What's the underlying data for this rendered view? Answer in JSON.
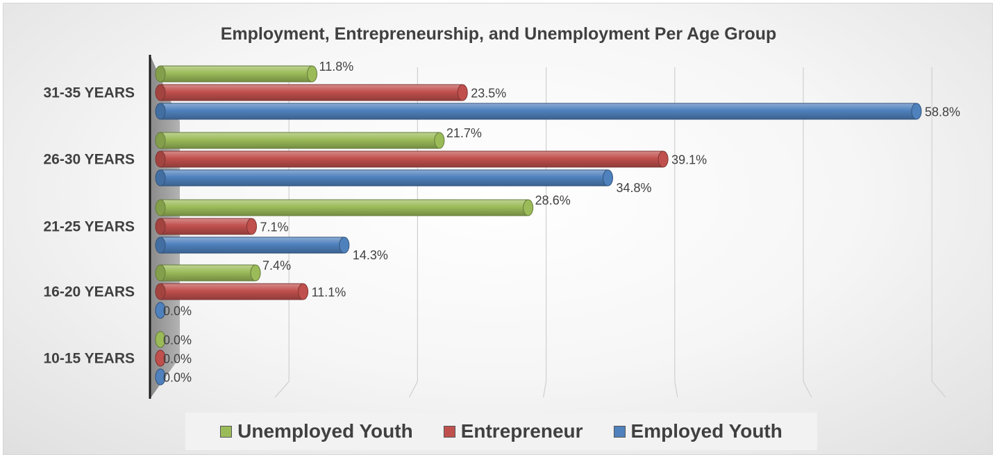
{
  "chart_data": {
    "type": "bar",
    "orientation": "horizontal",
    "title": "Employment, Entrepreneurship, and Unemployment Per Age Group",
    "categories": [
      "31-35 YEARS",
      "26-30 YEARS",
      "21-25 YEARS",
      "16-20 YEARS",
      "10-15 YEARS"
    ],
    "series": [
      {
        "name": "Unemployed Youth",
        "color": "#9bbb59",
        "values": [
          11.8,
          21.7,
          28.6,
          7.4,
          0.0
        ],
        "labels": [
          "11.8%",
          "21.7%",
          "28.6%",
          "7.4%",
          "0.0%"
        ]
      },
      {
        "name": "Entrepreneur",
        "color": "#c0504d",
        "values": [
          23.5,
          39.1,
          7.1,
          11.1,
          0.0
        ],
        "labels": [
          "23.5%",
          "39.1%",
          "7.1%",
          "11.1%",
          "0.0%"
        ]
      },
      {
        "name": "Employed Youth",
        "color": "#4f81bd",
        "values": [
          58.8,
          34.8,
          14.3,
          0.0,
          0.0
        ],
        "labels": [
          "58.8%",
          "34.8%",
          "14.3%",
          "0.0%",
          "0.0%"
        ]
      }
    ],
    "xlim": [
      0,
      60
    ],
    "grid": true,
    "legend_position": "bottom"
  }
}
